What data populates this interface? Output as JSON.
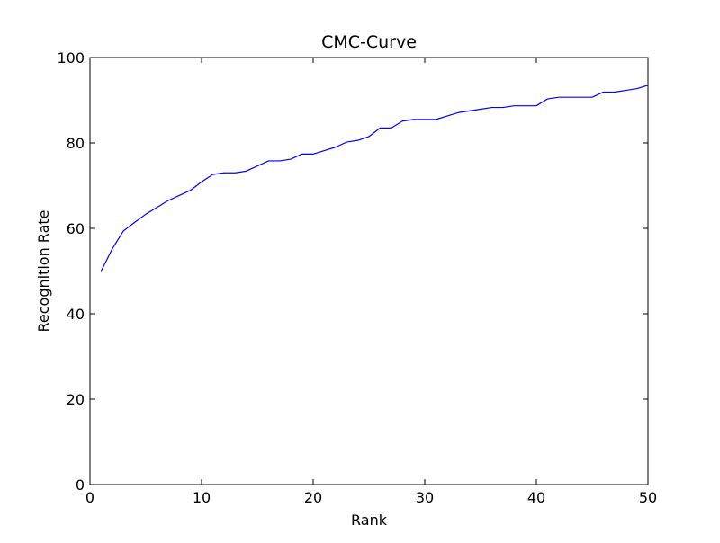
{
  "chart_data": {
    "type": "line",
    "title": "CMC-Curve",
    "xlabel": "Rank",
    "ylabel": "Recognition Rate",
    "xlim": [
      0,
      50
    ],
    "ylim": [
      0,
      100
    ],
    "xticks": [
      0,
      10,
      20,
      30,
      40,
      50
    ],
    "yticks": [
      0,
      20,
      40,
      60,
      80,
      100
    ],
    "grid": false,
    "line_color": "#0000ff",
    "series": [
      {
        "x": [
          1,
          2,
          3,
          4,
          5,
          6,
          7,
          8,
          9,
          10,
          11,
          12,
          13,
          14,
          15,
          16,
          17,
          18,
          19,
          20,
          21,
          22,
          23,
          24,
          25,
          26,
          27,
          28,
          29,
          30,
          31,
          32,
          33,
          34,
          35,
          36,
          37,
          38,
          39,
          40,
          41,
          42,
          43,
          44,
          45,
          46,
          47,
          48,
          49,
          50
        ],
        "values": [
          50.0,
          55.2,
          59.4,
          61.4,
          63.3,
          64.9,
          66.5,
          67.7,
          68.9,
          70.9,
          72.6,
          73.0,
          73.0,
          73.4,
          74.6,
          75.8,
          75.8,
          76.2,
          77.4,
          77.4,
          78.2,
          79.0,
          80.2,
          80.6,
          81.5,
          83.5,
          83.5,
          85.1,
          85.5,
          85.5,
          85.5,
          86.3,
          87.1,
          87.5,
          87.9,
          88.3,
          88.3,
          88.7,
          88.7,
          88.7,
          90.3,
          90.7,
          90.7,
          90.7,
          90.7,
          91.9,
          91.9,
          92.3,
          92.7,
          93.5
        ]
      }
    ]
  }
}
